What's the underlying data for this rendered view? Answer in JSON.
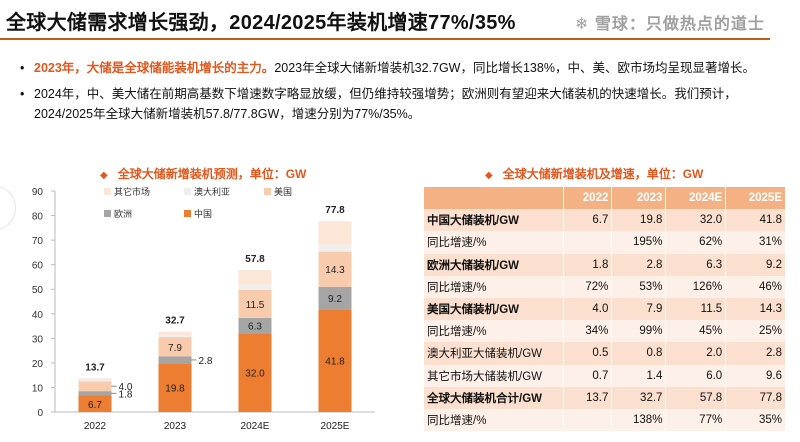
{
  "title": "全球大储需求增长强劲，2024/2025年装机增速77%/35%",
  "bullets": [
    {
      "highlight": "2023年，大储是全球储能装机增长的主力。",
      "text": "2023年全球大储新增装机32.7GW，同比增长138%，中、美、欧市场均呈现显著增长。"
    },
    {
      "highlight": "",
      "text": "2024年，中、美大储在前期高基数下增速数字略显放缓，但仍维持较强增势；欧洲则有望迎来大储装机的快速增长。我们预计，2024/2025年全球大储新增装机57.8/77.8GW，增速分别为77%/35%。"
    }
  ],
  "chart_data": {
    "type": "bar",
    "stacked": true,
    "title": "全球大储新增装机预测，单位：GW",
    "categories": [
      "2022",
      "2023",
      "2024E",
      "2025E"
    ],
    "ylim": [
      0,
      90
    ],
    "yticks": [
      0,
      10,
      20,
      30,
      40,
      50,
      60,
      70,
      80,
      90
    ],
    "legend_position": "top-left",
    "series": [
      {
        "name": "中国",
        "values": [
          6.7,
          19.8,
          32.0,
          41.8
        ],
        "color": "#ED7D31",
        "labeled": true
      },
      {
        "name": "欧洲",
        "values": [
          1.8,
          2.8,
          6.3,
          9.2
        ],
        "color": "#A5A5A5",
        "labeled": true
      },
      {
        "name": "美国",
        "values": [
          4.0,
          7.9,
          11.5,
          14.3
        ],
        "color": "#F8CBAD",
        "labeled": true
      },
      {
        "name": "澳大利亚",
        "values": [
          0.5,
          0.8,
          2.0,
          2.8
        ],
        "color": "#EFEFEF",
        "labeled": false
      },
      {
        "name": "其它市场",
        "values": [
          0.7,
          1.4,
          6.0,
          9.6
        ],
        "color": "#FCE6D8",
        "labeled": false
      }
    ],
    "legend_order": [
      "其它市场",
      "澳大利亚",
      "美国",
      "欧洲",
      "中国"
    ],
    "totals": [
      "13.7",
      "32.7",
      "57.8",
      "77.8"
    ]
  },
  "table": {
    "title": "全球大储新增装机及增速，单位：GW",
    "headers": [
      "",
      "2022",
      "2023",
      "2024E",
      "2025E"
    ],
    "rows": [
      {
        "label": "中国大储装机/GW",
        "bold": true,
        "values": [
          "6.7",
          "19.8",
          "32.0",
          "41.8"
        ]
      },
      {
        "label": "同比增速/%",
        "bold": false,
        "values": [
          "",
          "195%",
          "62%",
          "31%"
        ]
      },
      {
        "label": "欧洲大储装机/GW",
        "bold": true,
        "values": [
          "1.8",
          "2.8",
          "6.3",
          "9.2"
        ]
      },
      {
        "label": "同比增速/%",
        "bold": false,
        "values": [
          "72%",
          "53%",
          "126%",
          "46%"
        ]
      },
      {
        "label": "美国大储装机/GW",
        "bold": true,
        "values": [
          "4.0",
          "7.9",
          "11.5",
          "14.3"
        ]
      },
      {
        "label": "同比增速/%",
        "bold": false,
        "values": [
          "34%",
          "99%",
          "45%",
          "25%"
        ]
      },
      {
        "label": "澳大利亚大储装机/GW",
        "bold": false,
        "values": [
          "0.5",
          "0.8",
          "2.0",
          "2.8"
        ]
      },
      {
        "label": "其它市场大储装机/GW",
        "bold": false,
        "values": [
          "0.7",
          "1.4",
          "6.0",
          "9.6"
        ]
      },
      {
        "label": "全球大储装机合计/GW",
        "bold": true,
        "values": [
          "13.7",
          "32.7",
          "57.8",
          "77.8"
        ]
      },
      {
        "label": "同比增速/%",
        "bold": false,
        "values": [
          "",
          "138%",
          "77%",
          "35%"
        ]
      }
    ]
  },
  "watermark": "❄ 雪球：只做热点的道士",
  "colors": {
    "accent": "#E2581E",
    "rule": "#C55A11",
    "header": "#F4B183"
  }
}
